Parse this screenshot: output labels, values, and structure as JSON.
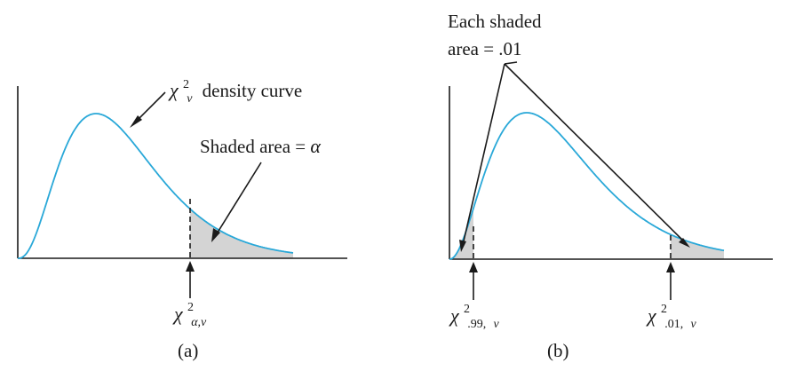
{
  "colors": {
    "curve": "#29a8d8",
    "shade": "#d4d4d4",
    "ink": "#1a1a1a"
  },
  "panel_a": {
    "curve_label_symbol": "χ",
    "curve_label_sup": "2",
    "curve_label_sub": "ν",
    "curve_label_text": "density curve",
    "shaded_label_text": "Shaded area = ",
    "shaded_label_symbol": "α",
    "crit_symbol": "χ",
    "crit_sup": "2",
    "crit_sub": "α,ν",
    "caption": "(a)"
  },
  "panel_b": {
    "note_line1": "Each shaded",
    "note_line2": "area = .01",
    "lower_symbol": "χ",
    "lower_sup": "2",
    "lower_sub_num": ".99,",
    "lower_sub_greek": "ν",
    "upper_symbol": "χ",
    "upper_sup": "2",
    "upper_sub_num": ".01,",
    "upper_sub_greek": "ν",
    "caption": "(b)"
  }
}
